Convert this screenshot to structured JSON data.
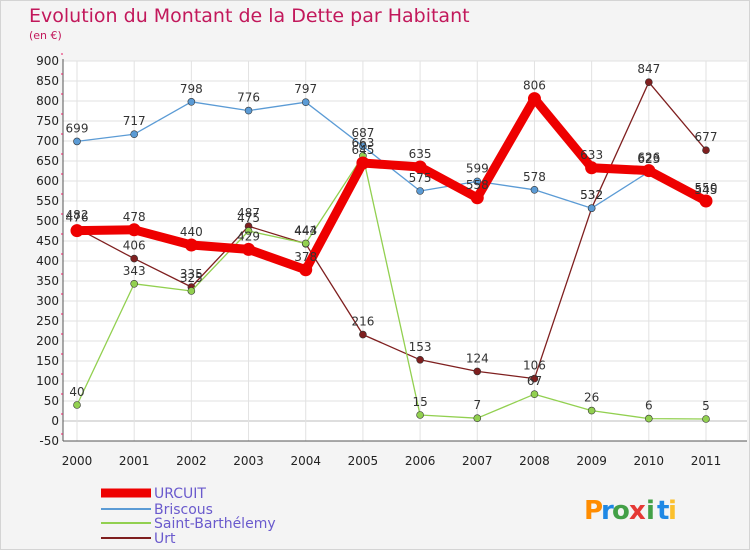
{
  "chart_data": {
    "type": "line",
    "title": "Evolution du Montant de la Dette par Habitant",
    "subtitle": "(en €)",
    "x": [
      "2000",
      "2001",
      "2002",
      "2003",
      "2004",
      "2005",
      "2006",
      "2007",
      "2008",
      "2009",
      "2010",
      "2011"
    ],
    "yticks": [
      "-50",
      "0",
      "50",
      "100",
      "150",
      "200",
      "250",
      "300",
      "350",
      "400",
      "450",
      "500",
      "550",
      "600",
      "650",
      "700",
      "750",
      "800",
      "850",
      "900"
    ],
    "ylim": [
      -50,
      900
    ],
    "grid": true,
    "legend_position": "bottom-left",
    "series": [
      {
        "name": "URCUIT",
        "color": "#ee0000",
        "values": [
          476,
          478,
          440,
          429,
          378,
          645,
          635,
          558,
          806,
          633,
          626,
          550
        ]
      },
      {
        "name": "Briscous",
        "color": "#5b9bd5",
        "values": [
          699,
          717,
          798,
          776,
          797,
          687,
          575,
          599,
          578,
          532,
          623,
          545
        ]
      },
      {
        "name": "Saint-Barthélemy",
        "color": "#92d050",
        "values": [
          40,
          343,
          325,
          475,
          444,
          663,
          15,
          7,
          67,
          26,
          6,
          5
        ]
      },
      {
        "name": "Urt",
        "color": "#7f1f1f",
        "values": [
          482,
          406,
          335,
          487,
          443,
          216,
          153,
          124,
          106,
          532,
          847,
          677
        ]
      }
    ]
  },
  "watermark": {
    "letters": [
      "P",
      "r",
      "o",
      "x",
      "i",
      "t",
      "i"
    ],
    "colors": [
      "#ff8c00",
      "#1e88e5",
      "#43a047",
      "#e53935",
      "#43a047",
      "#1e88e5",
      "#fbc02d"
    ]
  }
}
